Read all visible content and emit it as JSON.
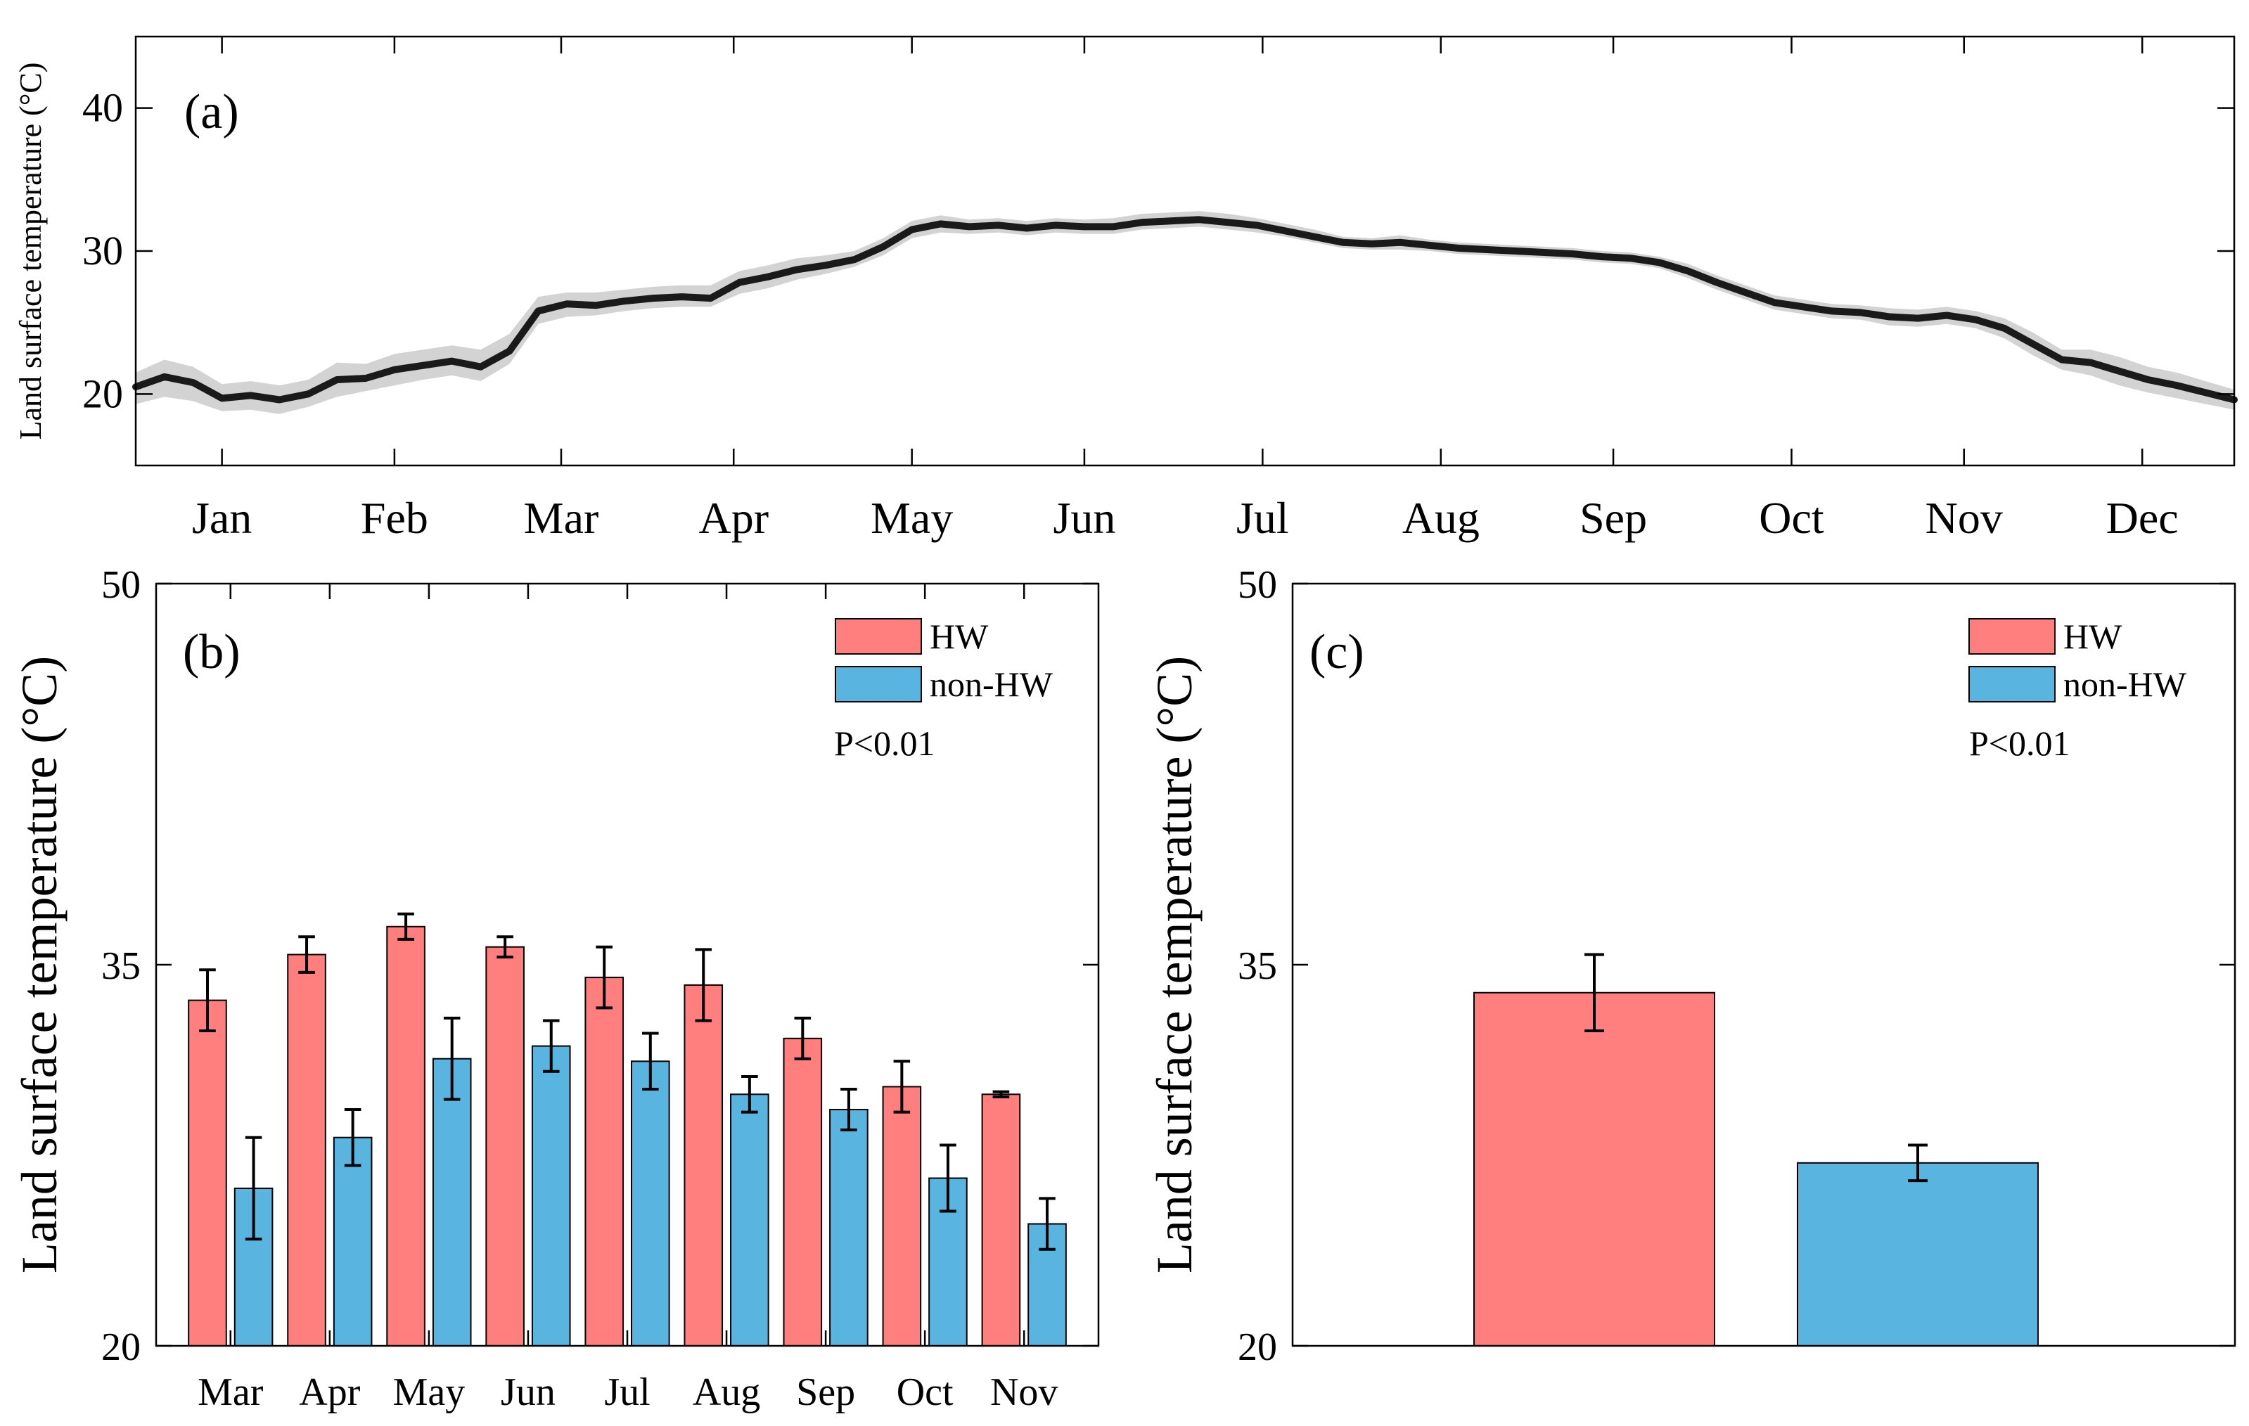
{
  "chart_data": [
    {
      "panel": "(a)",
      "type": "line",
      "ylabel": "Land surface temperature (°C)",
      "ylim": [
        15,
        45
      ],
      "yticks": [
        "20",
        "30",
        "40"
      ],
      "xlim": [
        0,
        365
      ],
      "x_ticks": [
        {
          "label": "Jan",
          "day": 15
        },
        {
          "label": "Feb",
          "day": 45
        },
        {
          "label": "Mar",
          "day": 74
        },
        {
          "label": "Apr",
          "day": 104
        },
        {
          "label": "May",
          "day": 135
        },
        {
          "label": "Jun",
          "day": 165
        },
        {
          "label": "Jul",
          "day": 196
        },
        {
          "label": "Aug",
          "day": 227
        },
        {
          "label": "Sep",
          "day": 257
        },
        {
          "label": "Oct",
          "day": 288
        },
        {
          "label": "Nov",
          "day": 318
        },
        {
          "label": "Dec",
          "day": 349
        }
      ],
      "series": [
        {
          "style": "mean line with shaded range",
          "x": [
            0,
            5,
            10,
            15,
            20,
            25,
            30,
            35,
            40,
            45,
            50,
            55,
            60,
            65,
            70,
            75,
            80,
            85,
            90,
            95,
            100,
            105,
            110,
            115,
            120,
            125,
            130,
            135,
            140,
            145,
            150,
            155,
            160,
            165,
            170,
            175,
            180,
            185,
            190,
            195,
            200,
            205,
            210,
            215,
            220,
            225,
            230,
            235,
            240,
            245,
            250,
            255,
            260,
            265,
            270,
            275,
            280,
            285,
            290,
            295,
            300,
            305,
            310,
            315,
            320,
            325,
            330,
            335,
            340,
            345,
            350,
            355,
            360,
            365
          ],
          "y": [
            20.5,
            21.2,
            20.8,
            19.7,
            19.9,
            19.6,
            20.0,
            21.0,
            21.1,
            21.7,
            22.0,
            22.3,
            21.9,
            23.0,
            25.8,
            26.3,
            26.2,
            26.5,
            26.7,
            26.8,
            26.7,
            27.8,
            28.2,
            28.7,
            29.0,
            29.4,
            30.3,
            31.5,
            31.9,
            31.7,
            31.8,
            31.6,
            31.8,
            31.7,
            31.7,
            32.0,
            32.1,
            32.2,
            32.0,
            31.8,
            31.4,
            31.0,
            30.6,
            30.5,
            30.6,
            30.4,
            30.2,
            30.1,
            30.0,
            29.9,
            29.8,
            29.6,
            29.5,
            29.2,
            28.6,
            27.8,
            27.1,
            26.4,
            26.1,
            25.8,
            25.7,
            25.4,
            25.3,
            25.5,
            25.2,
            24.6,
            23.5,
            22.4,
            22.2,
            21.6,
            21.0,
            20.6,
            20.1,
            19.6
          ],
          "lower": [
            19.3,
            19.8,
            19.5,
            18.8,
            18.9,
            18.6,
            19.1,
            19.8,
            20.2,
            20.6,
            21.0,
            21.3,
            20.9,
            22.1,
            24.9,
            25.4,
            25.5,
            25.8,
            26.0,
            26.1,
            26.1,
            27.0,
            27.4,
            28.0,
            28.4,
            28.9,
            29.7,
            30.9,
            31.3,
            31.2,
            31.3,
            31.1,
            31.3,
            31.2,
            31.2,
            31.5,
            31.6,
            31.7,
            31.5,
            31.3,
            31.0,
            30.6,
            30.2,
            30.1,
            30.1,
            30.0,
            29.8,
            29.7,
            29.6,
            29.5,
            29.4,
            29.2,
            29.1,
            28.8,
            28.1,
            27.3,
            26.6,
            25.9,
            25.6,
            25.3,
            25.2,
            24.8,
            24.7,
            24.9,
            24.6,
            23.9,
            22.7,
            21.7,
            21.3,
            20.6,
            20.1,
            19.7,
            19.3,
            18.9
          ],
          "upper": [
            21.5,
            22.4,
            21.9,
            20.7,
            20.9,
            20.6,
            21.0,
            22.2,
            22.1,
            22.8,
            23.1,
            23.4,
            23.1,
            24.2,
            26.8,
            27.1,
            27.1,
            27.3,
            27.5,
            27.6,
            27.6,
            28.6,
            29.0,
            29.5,
            29.7,
            30.0,
            30.9,
            32.1,
            32.5,
            32.2,
            32.3,
            32.1,
            32.3,
            32.2,
            32.3,
            32.6,
            32.7,
            32.8,
            32.6,
            32.3,
            31.9,
            31.5,
            31.0,
            30.9,
            31.1,
            30.8,
            30.6,
            30.5,
            30.4,
            30.3,
            30.2,
            30.0,
            29.9,
            29.6,
            29.1,
            28.3,
            27.6,
            26.9,
            26.6,
            26.3,
            26.2,
            26.0,
            25.9,
            26.1,
            25.8,
            25.3,
            24.3,
            23.1,
            23.1,
            22.6,
            21.9,
            21.5,
            20.9,
            20.3
          ]
        }
      ]
    },
    {
      "panel": "(b)",
      "type": "bar",
      "ylabel": "Land surface temperature (°C)",
      "ylim": [
        20,
        50
      ],
      "yticks": [
        "20",
        "35",
        "50"
      ],
      "categories": [
        "Mar",
        "Apr",
        "May",
        "Jun",
        "Jul",
        "Aug",
        "Sep",
        "Oct",
        "Nov"
      ],
      "series": [
        {
          "name": "HW",
          "color": "#FF7F7F",
          "values": [
            33.6,
            35.4,
            36.5,
            35.7,
            34.5,
            34.2,
            32.1,
            30.2,
            29.9
          ],
          "errors": [
            1.2,
            0.7,
            0.5,
            0.4,
            1.2,
            1.4,
            0.8,
            1.0,
            0.1
          ]
        },
        {
          "name": "non-HW",
          "color": "#5AB4E0",
          "values": [
            26.2,
            28.2,
            31.3,
            31.8,
            31.2,
            29.9,
            29.3,
            26.6,
            24.8
          ],
          "errors": [
            2.0,
            1.1,
            1.6,
            1.0,
            1.1,
            0.7,
            0.8,
            1.3,
            1.0
          ]
        }
      ],
      "annotation": "P<0.01",
      "legend_position": "top-right"
    },
    {
      "panel": "(c)",
      "type": "bar",
      "ylabel": "Land surface temperature (°C)",
      "ylim": [
        20,
        50
      ],
      "yticks": [
        "20",
        "35",
        "50"
      ],
      "series": [
        {
          "name": "HW",
          "color": "#FF7F7F",
          "values": [
            33.9
          ],
          "errors": [
            1.5
          ]
        },
        {
          "name": "non-HW",
          "color": "#5AB4E0",
          "values": [
            27.2
          ],
          "errors": [
            0.7
          ]
        }
      ],
      "annotation": "P<0.01",
      "legend_position": "top-right"
    }
  ]
}
